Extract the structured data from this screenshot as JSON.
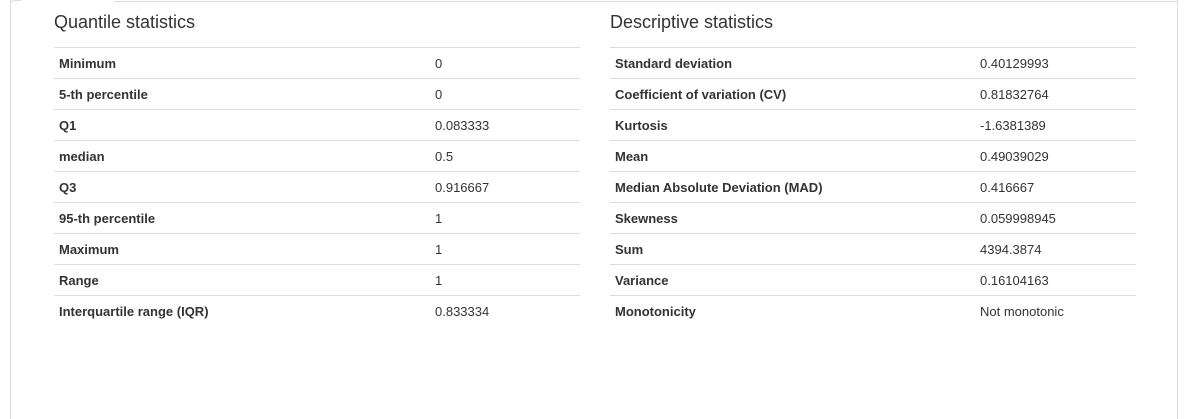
{
  "quantile": {
    "title": "Quantile statistics",
    "rows": [
      {
        "label": "Minimum",
        "value": "0"
      },
      {
        "label": "5-th percentile",
        "value": "0"
      },
      {
        "label": "Q1",
        "value": "0.083333"
      },
      {
        "label": "median",
        "value": "0.5"
      },
      {
        "label": "Q3",
        "value": "0.916667"
      },
      {
        "label": "95-th percentile",
        "value": "1"
      },
      {
        "label": "Maximum",
        "value": "1"
      },
      {
        "label": "Range",
        "value": "1"
      },
      {
        "label": "Interquartile range (IQR)",
        "value": "0.833334"
      }
    ]
  },
  "descriptive": {
    "title": "Descriptive statistics",
    "rows": [
      {
        "label": "Standard deviation",
        "value": "0.40129993"
      },
      {
        "label": "Coefficient of variation (CV)",
        "value": "0.81832764"
      },
      {
        "label": "Kurtosis",
        "value": "-1.6381389"
      },
      {
        "label": "Mean",
        "value": "0.49039029"
      },
      {
        "label": "Median Absolute Deviation (MAD)",
        "value": "0.416667"
      },
      {
        "label": "Skewness",
        "value": "0.059998945"
      },
      {
        "label": "Sum",
        "value": "4394.3874"
      },
      {
        "label": "Variance",
        "value": "0.16104163"
      },
      {
        "label": "Monotonicity",
        "value": "Not monotonic"
      }
    ]
  }
}
